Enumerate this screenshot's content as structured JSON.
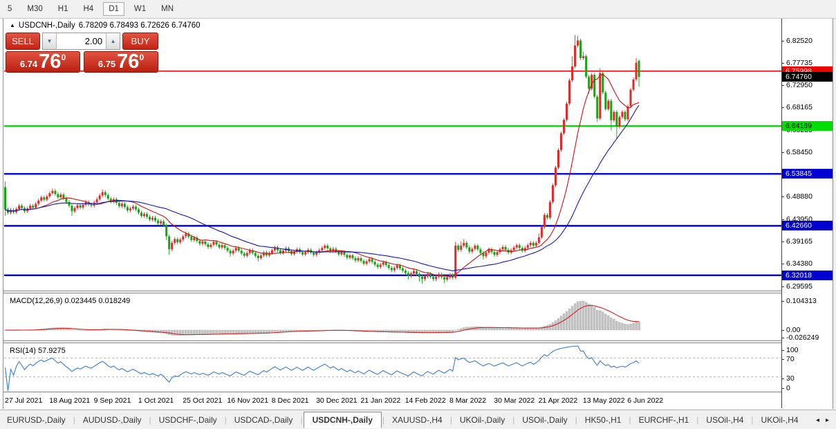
{
  "toolbar": {
    "timeframes": [
      "5",
      "M30",
      "H1",
      "H4",
      "D1",
      "W1",
      "MN"
    ],
    "active": "D1"
  },
  "chart": {
    "symbol_icon": "up-triangle",
    "title": "USDCNH-,Daily",
    "ohlc": "6.78209 6.78493 6.72626 6.74760",
    "colors": {
      "up_candle": "#e02a2a",
      "down_candle": "#12a412",
      "ma_fast": "#cc1111",
      "ma_slow": "#1515b5",
      "background": "#ffffff"
    },
    "hlines": [
      {
        "value": "6.75998",
        "price": 6.75998,
        "color": "#f00000",
        "width": 1.6,
        "badge_bg": "#ee0000",
        "badge_fg": "#ffffff"
      },
      {
        "value": "6.64169",
        "price": 6.64169,
        "color": "#00dd00",
        "width": 2.4,
        "badge_bg": "#00dd00",
        "badge_fg": "#000000"
      },
      {
        "value": "6.53845",
        "price": 6.53845,
        "color": "#0000e0",
        "width": 2.4,
        "badge_bg": "#0000d0",
        "badge_fg": "#ffffff"
      },
      {
        "value": "6.42660",
        "price": 6.4266,
        "color": "#0000e0",
        "width": 2.4,
        "badge_bg": "#0000d0",
        "badge_fg": "#ffffff"
      },
      {
        "value": "6.32018",
        "price": 6.32018,
        "color": "#0000e0",
        "width": 2.4,
        "badge_bg": "#0000d0",
        "badge_fg": "#ffffff"
      }
    ],
    "current_price": {
      "value": "6.74760",
      "price": 6.7476,
      "badge_bg": "#000000",
      "badge_fg": "#ffffff"
    },
    "price_ticks": [
      "6.82520",
      "6.77735",
      "6.72950",
      "6.68165",
      "6.63235",
      "6.58450",
      "6.48880",
      "6.43950",
      "6.39165",
      "6.34380",
      "6.29595"
    ],
    "candles": {
      "closes": [
        6.462,
        6.455,
        6.461,
        6.456,
        6.463,
        6.47,
        6.465,
        6.458,
        6.464,
        6.47,
        6.466,
        6.474,
        6.481,
        6.488,
        6.483,
        6.49,
        6.497,
        6.502,
        6.495,
        6.488,
        6.494,
        6.486,
        6.478,
        6.47,
        6.458,
        6.465,
        6.471,
        6.466,
        6.472,
        6.478,
        6.473,
        6.47,
        6.477,
        6.484,
        6.492,
        6.499,
        6.493,
        6.485,
        6.479,
        6.484,
        6.476,
        6.469,
        6.474,
        6.467,
        6.46,
        6.464,
        6.468,
        6.462,
        6.455,
        6.448,
        6.452,
        6.446,
        6.44,
        6.444,
        6.438,
        6.432,
        6.436,
        6.428,
        6.404,
        6.376,
        6.39,
        6.398,
        6.391,
        6.397,
        6.404,
        6.41,
        6.403,
        6.396,
        6.401,
        6.394,
        6.388,
        6.393,
        6.387,
        6.381,
        6.386,
        6.392,
        6.386,
        6.38,
        6.385,
        6.379,
        6.373,
        6.367,
        6.373,
        6.379,
        6.373,
        6.367,
        6.362,
        6.368,
        6.374,
        6.368,
        6.362,
        6.357,
        6.363,
        6.369,
        6.363,
        6.368,
        6.374,
        6.38,
        6.374,
        6.368,
        6.373,
        6.378,
        6.372,
        6.366,
        6.371,
        6.376,
        6.37,
        6.365,
        6.37,
        6.375,
        6.369,
        6.364,
        6.369,
        6.374,
        6.379,
        6.384,
        6.378,
        6.372,
        6.377,
        6.371,
        6.365,
        6.37,
        6.364,
        6.358,
        6.363,
        6.357,
        6.352,
        6.357,
        6.351,
        6.345,
        6.35,
        6.355,
        6.349,
        6.343,
        6.338,
        6.343,
        6.348,
        6.342,
        6.336,
        6.331,
        6.336,
        6.341,
        6.335,
        6.33,
        6.325,
        6.319,
        6.324,
        6.329,
        6.323,
        6.317,
        6.312,
        6.318,
        6.323,
        6.317,
        6.312,
        6.317,
        6.322,
        6.316,
        6.311,
        6.316,
        6.321,
        6.315,
        6.384,
        6.375,
        6.384,
        6.39,
        6.38,
        6.371,
        6.377,
        6.384,
        6.376,
        6.368,
        6.361,
        6.369,
        6.376,
        6.37,
        6.364,
        6.37,
        6.376,
        6.381,
        6.375,
        6.369,
        6.374,
        6.38,
        6.385,
        6.379,
        6.373,
        6.379,
        6.385,
        6.39,
        6.384,
        6.39,
        6.402,
        6.424,
        6.45,
        6.444,
        6.478,
        6.514,
        6.552,
        6.59,
        6.626,
        6.655,
        6.69,
        6.74,
        6.77,
        6.815,
        6.826,
        6.788,
        6.792,
        6.748,
        6.722,
        6.752,
        6.705,
        6.658,
        6.756,
        6.714,
        6.678,
        6.696,
        6.654,
        6.672,
        6.64,
        6.661,
        6.672,
        6.656,
        6.684,
        6.72,
        6.742,
        6.778,
        6.7476
      ],
      "special": {
        "0": {
          "o": 6.51,
          "h": 6.522,
          "l": 6.448
        },
        "17": {
          "h": 6.507
        },
        "24": {
          "l": 6.448
        },
        "35": {
          "h": 6.505
        },
        "58": {
          "l": 6.396
        },
        "59": {
          "l": 6.364
        },
        "81": {
          "l": 6.36
        },
        "91": {
          "l": 6.35
        },
        "145": {
          "l": 6.311
        },
        "149": {
          "l": 6.307
        },
        "150": {
          "l": 6.302
        },
        "158": {
          "l": 6.303
        },
        "162": {
          "h": 6.392,
          "l": 6.312
        },
        "164": {
          "h": 6.393
        },
        "165": {
          "h": 6.398
        },
        "172": {
          "l": 6.354
        },
        "192": {
          "h": 6.41
        },
        "204": {
          "h": 6.792
        },
        "205": {
          "h": 6.838
        },
        "206": {
          "h": 6.836
        },
        "208": {
          "h": 6.802
        },
        "210": {
          "l": 6.712
        },
        "213": {
          "l": 6.65
        },
        "214": {
          "h": 6.766
        },
        "218": {
          "l": 6.632
        },
        "220": {
          "l": 6.614
        },
        "227": {
          "h": 6.788
        },
        "228": {
          "o": 6.78209,
          "h": 6.78493,
          "l": 6.72626
        }
      },
      "default_wick": 0.004
    }
  },
  "trade": {
    "sell_label": "SELL",
    "buy_label": "BUY",
    "volume": "2.00",
    "volume_down_icon": "down-triangle",
    "volume_up_icon": "up-triangle",
    "sell_price": {
      "base": "6.74",
      "pips": "76",
      "sup": "0"
    },
    "buy_price": {
      "base": "6.75",
      "pips": "76",
      "sup": "0"
    }
  },
  "macd": {
    "name": "MACD(12,26,9)",
    "values": "0.023445 0.018249",
    "axis": [
      "0.104313",
      "0.00",
      "-0.026249"
    ],
    "params": {
      "fast": 12,
      "slow": 26,
      "signal": 9
    },
    "hist_color": "#c3c3c3",
    "signal_color": "#d42020"
  },
  "rsi": {
    "name": "RSI(14)",
    "value": "57.9275",
    "axis": [
      "100",
      "70",
      "30",
      "0"
    ],
    "levels": [
      70,
      30
    ],
    "period": 14,
    "line_color": "#4a86c8"
  },
  "date_axis": [
    "27 Jul 2021",
    "18 Aug 2021",
    "9 Sep 2021",
    "1 Oct 2021",
    "25 Oct 2021",
    "16 Nov 2021",
    "8 Dec 2021",
    "30 Dec 2021",
    "21 Jan 2022",
    "14 Feb 2022",
    "8 Mar 2022",
    "30 Mar 2022",
    "21 Apr 2022",
    "13 May 2022",
    "6 Jun 2022"
  ],
  "tabs": {
    "items": [
      "EURUSD-,Daily",
      "AUDUSD-,Daily",
      "USDCHF-,Daily",
      "USDCAD-,Daily",
      "USDCNH-,Daily",
      "XAUUSD-,H4",
      "UKOil-,Daily",
      "USOil-,Daily",
      "HK50-,H1",
      "EURCHF-,H1",
      "USOil-,H4",
      "UKOil-,H4"
    ],
    "active_index": 4,
    "scroll_left_icon": "left-arrow",
    "scroll_right_icon": "right-arrow"
  }
}
